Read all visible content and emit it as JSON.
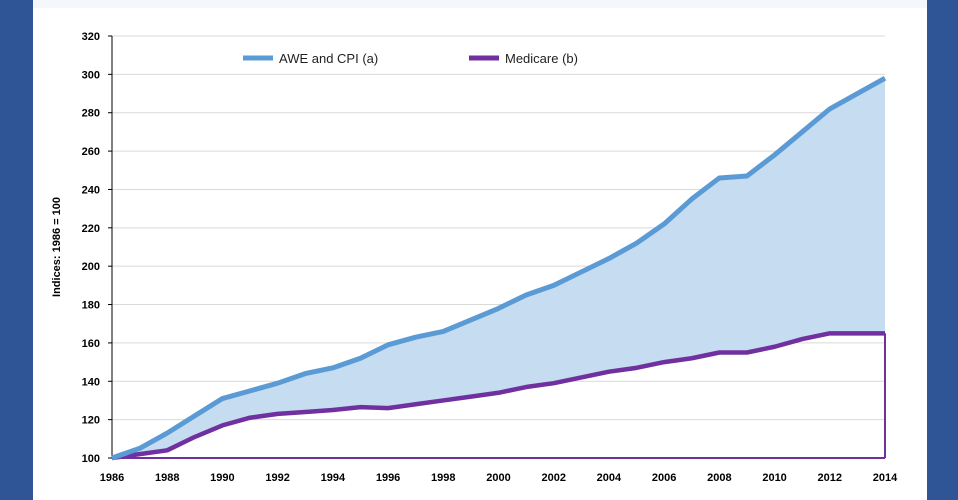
{
  "chart_data": {
    "type": "area",
    "title": "",
    "xlabel": "",
    "ylabel": "Indices: 1986 = 100",
    "xlim": [
      1986,
      2014
    ],
    "ylim": [
      100,
      320
    ],
    "x_ticks": [
      "1986",
      "1988",
      "1990",
      "1992",
      "1994",
      "1996",
      "1998",
      "2000",
      "2002",
      "2004",
      "2006",
      "2008",
      "2010",
      "2012",
      "2014"
    ],
    "y_ticks": [
      "100",
      "120",
      "140",
      "160",
      "180",
      "200",
      "220",
      "240",
      "260",
      "280",
      "300",
      "320"
    ],
    "grid": true,
    "legend_position": "top",
    "x": [
      1986,
      1987,
      1988,
      1989,
      1990,
      1991,
      1992,
      1993,
      1994,
      1995,
      1996,
      1997,
      1998,
      1999,
      2000,
      2001,
      2002,
      2003,
      2004,
      2005,
      2006,
      2007,
      2008,
      2009,
      2010,
      2011,
      2012,
      2013,
      2014
    ],
    "series": [
      {
        "name": "AWE and CPI (a)",
        "color": "#5b9bd5",
        "values": [
          100,
          105,
          113,
          122,
          131,
          135,
          139,
          144,
          147,
          152,
          159,
          163,
          166,
          172,
          178,
          185,
          190,
          197,
          204,
          212,
          222,
          235,
          246,
          247,
          258,
          270,
          282,
          290,
          298
        ]
      },
      {
        "name": "Medicare (b)",
        "color": "#7030a0",
        "values": [
          100,
          102,
          104,
          111,
          117,
          121,
          123,
          124,
          125,
          126.5,
          126,
          128,
          130,
          132,
          134,
          137,
          139,
          142,
          145,
          147,
          150,
          152,
          155,
          155,
          158,
          162,
          165,
          165,
          165
        ]
      }
    ],
    "fill_between_color": "#c5dcf1"
  }
}
